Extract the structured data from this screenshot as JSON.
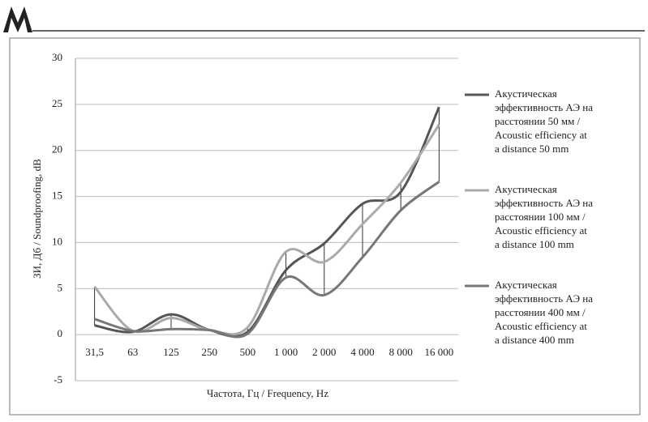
{
  "chart_data": {
    "type": "line",
    "x_label": "Частота, Гц / Frequency, Hz",
    "y_label": "ЗИ, Дб / Soundproofing, dB",
    "categories": [
      "31,5",
      "63",
      "125",
      "250",
      "500",
      "1 000",
      "2 000",
      "4 000",
      "8 000",
      "16 000"
    ],
    "series": [
      {
        "name": "Акустическая\nэффективность АЭ  на\nрасстоянии 50 мм /\nAcoustic efficiency at\na distance 50 mm",
        "color": "#555555",
        "values": [
          1.0,
          0.3,
          2.2,
          0.5,
          0.3,
          7.0,
          9.9,
          14.2,
          15.5,
          24.7
        ]
      },
      {
        "name": "Акустическая\nэффективность АЭ  на\nрасстоянии 100 мм /\nAcoustic efficiency at\na distance 100 mm",
        "color": "#aaaaaa",
        "values": [
          5.2,
          0.4,
          1.8,
          0.5,
          0.8,
          9.0,
          7.9,
          12.0,
          16.5,
          22.8
        ]
      },
      {
        "name": "Акустическая\nэффективность АЭ  на\nрасстоянии 400 мм /\nAcoustic efficiency at\na distance 400 mm",
        "color": "#777777",
        "values": [
          1.7,
          0.4,
          0.6,
          0.5,
          0.1,
          6.2,
          4.3,
          8.4,
          13.5,
          16.6
        ]
      }
    ],
    "ylim": [
      -5,
      30
    ],
    "yticks": [
      -5,
      0,
      5,
      10,
      15,
      20,
      25,
      30
    ],
    "grid": true,
    "smooth": true,
    "high_low_lines": true,
    "legend": "right"
  }
}
